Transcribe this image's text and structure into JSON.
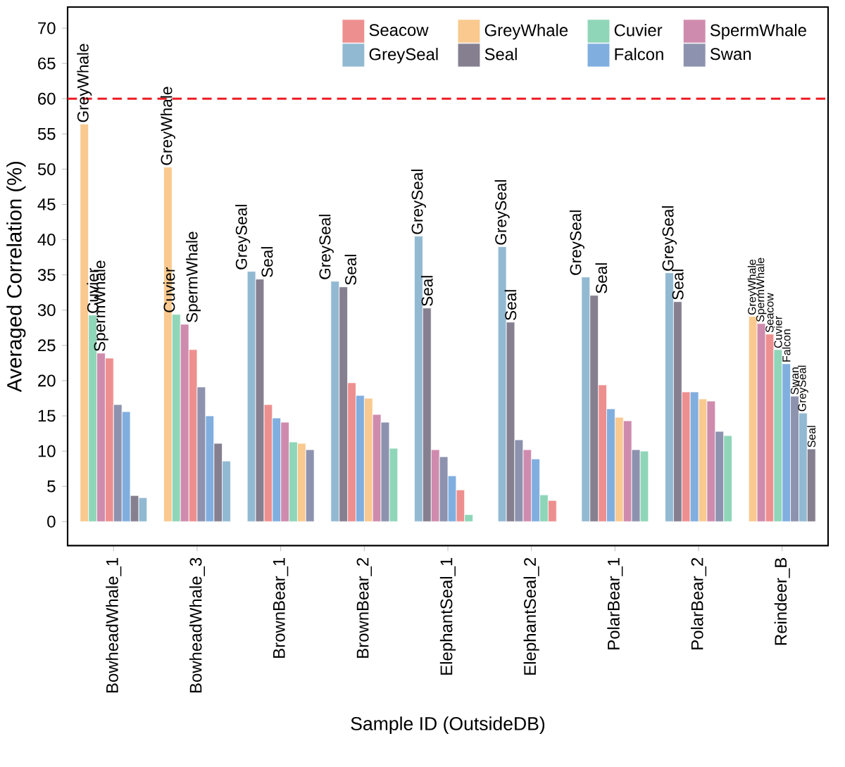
{
  "chart_data": {
    "type": "bar",
    "ylabel": "Averaged Correlation (%)",
    "xlabel": "Sample ID (OutsideDB)",
    "categories": [
      "BowheadWhale_1",
      "BowheadWhale_3",
      "BrownBear_1",
      "BrownBear_2",
      "ElephantSeal_1",
      "ElephantSeal_2",
      "PolarBear_1",
      "PolarBear_2",
      "Reindeer_B"
    ],
    "series": [
      {
        "name": "Seacow",
        "color": "#ee8f8f",
        "values": [
          23.2,
          24.4,
          16.6,
          19.7,
          4.5,
          3.0,
          19.4,
          18.4,
          26.6
        ],
        "value_labels": [
          null,
          null,
          null,
          null,
          null,
          null,
          null,
          null,
          "Seacow"
        ]
      },
      {
        "name": "GreyWhale",
        "color": "#f9c98f",
        "values": [
          56.4,
          50.3,
          11.1,
          17.5,
          null,
          null,
          14.8,
          17.4,
          29.1
        ],
        "value_labels": [
          "GreyWhale",
          "GreyWhale",
          null,
          null,
          null,
          null,
          null,
          null,
          "GreyWhale"
        ]
      },
      {
        "name": "Cuvier",
        "color": "#8fd6b8",
        "values": [
          29.3,
          29.4,
          11.3,
          10.4,
          1.0,
          3.8,
          10.0,
          12.2,
          24.4
        ],
        "value_labels": [
          "Cuvier",
          "Cuvier",
          null,
          null,
          null,
          null,
          null,
          null,
          "Cuvier"
        ]
      },
      {
        "name": "SpermWhale",
        "color": "#cf8bae",
        "values": [
          23.9,
          28.0,
          14.1,
          15.2,
          10.2,
          10.2,
          14.3,
          17.1,
          28.1
        ],
        "value_labels": [
          "SpermWhale",
          "SpermWhale",
          null,
          null,
          null,
          null,
          null,
          null,
          "SpermWhale"
        ]
      },
      {
        "name": "GreySeal",
        "color": "#92b9d2",
        "values": [
          3.4,
          8.6,
          35.5,
          34.1,
          40.5,
          39.0,
          34.7,
          35.3,
          15.4
        ],
        "value_labels": [
          null,
          null,
          "GreySeal",
          "GreySeal",
          "GreySeal",
          "GreySeal",
          "GreySeal",
          "GreySeal",
          "GreySeal"
        ]
      },
      {
        "name": "Seal",
        "color": "#857f8f",
        "values": [
          3.7,
          11.1,
          34.4,
          33.3,
          30.3,
          28.3,
          32.1,
          31.2,
          10.3
        ],
        "value_labels": [
          null,
          null,
          "Seal",
          "Seal",
          "Seal",
          "Seal",
          "Seal",
          "Seal",
          "Seal"
        ]
      },
      {
        "name": "Falcon",
        "color": "#80aedf",
        "values": [
          15.6,
          15.0,
          14.7,
          17.9,
          6.5,
          8.9,
          16.0,
          18.4,
          22.4
        ],
        "value_labels": [
          null,
          null,
          null,
          null,
          null,
          null,
          null,
          null,
          "Falcon"
        ]
      },
      {
        "name": "Swan",
        "color": "#8d92ae",
        "values": [
          16.6,
          19.1,
          10.2,
          14.1,
          9.2,
          11.6,
          10.2,
          12.8,
          17.8
        ],
        "value_labels": [
          null,
          null,
          null,
          null,
          null,
          null,
          null,
          null,
          "Swan"
        ]
      }
    ],
    "ylim": [
      -3.4,
      73
    ],
    "yticks": [
      0,
      5,
      10,
      15,
      20,
      25,
      30,
      35,
      40,
      45,
      50,
      55,
      60,
      65,
      70
    ],
    "ref_lines": [
      {
        "axis": "y",
        "value": 60,
        "color": "#ee1c24",
        "line_style": "dashed"
      }
    ],
    "legend": "top right"
  }
}
